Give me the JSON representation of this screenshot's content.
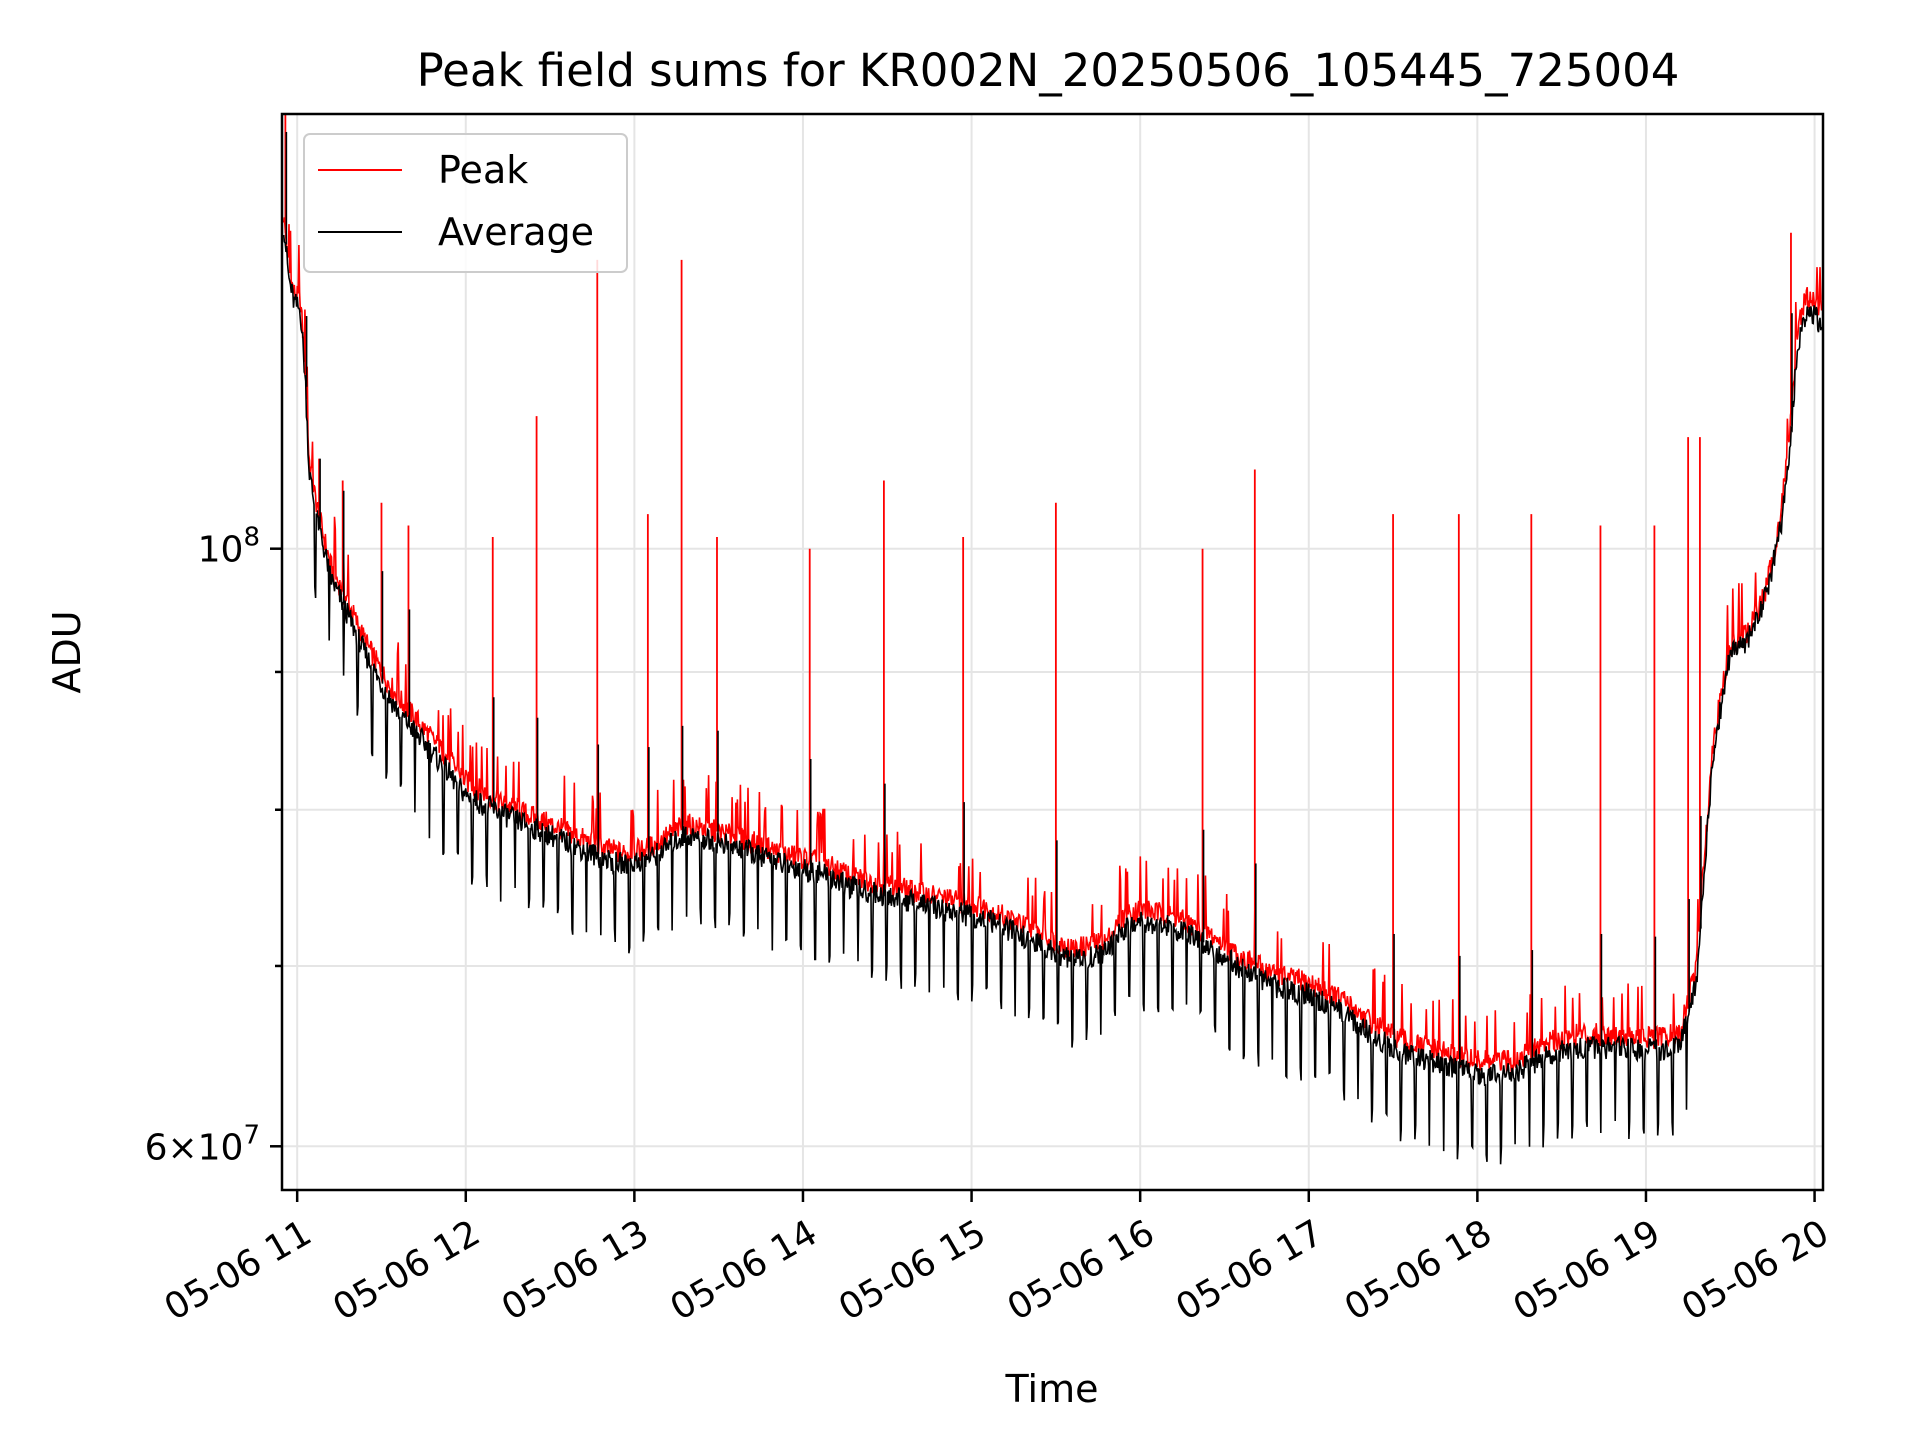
{
  "chart_data": {
    "type": "line",
    "title": "Peak field sums for KR002N_20250506_105445_725004",
    "xlabel": "Time",
    "ylabel": "ADU",
    "yscale": "log",
    "grid": true,
    "legend_position": "top-left",
    "x_tick_labels": [
      "05-06 11",
      "05-06 12",
      "05-06 13",
      "05-06 14",
      "05-06 15",
      "05-06 16",
      "05-06 17",
      "05-06 18",
      "05-06 19",
      "05-06 20"
    ],
    "x_tick_hours": [
      11,
      12,
      13,
      14,
      15,
      16,
      17,
      18,
      19,
      20
    ],
    "xlim": [
      10.91,
      20.05
    ],
    "ylim": [
      57800000,
      145000000
    ],
    "y_major_ticks": [
      {
        "value": 100000000,
        "base": "10",
        "exp": "8"
      },
      {
        "value": 60000000,
        "mant": "6",
        "base": "10",
        "exp": "7"
      }
    ],
    "y_minor_ticks": [
      70000000,
      80000000,
      90000000
    ],
    "series": [
      {
        "name": "Peak",
        "color": "#ff0000",
        "x": [
          10.92,
          10.95,
          10.98,
          11.02,
          11.05,
          11.07,
          11.1,
          11.15,
          11.2,
          11.3,
          11.4,
          11.5,
          11.6,
          11.7,
          11.8,
          11.9,
          12.0,
          12.2,
          12.4,
          12.6,
          12.8,
          12.95,
          13.1,
          13.3,
          13.5,
          13.7,
          13.9,
          14.1,
          14.3,
          14.5,
          14.7,
          14.9,
          15.1,
          15.3,
          15.5,
          15.6,
          15.8,
          15.9,
          16.0,
          16.2,
          16.4,
          16.6,
          16.8,
          17.0,
          17.2,
          17.4,
          17.6,
          17.8,
          18.0,
          18.2,
          18.4,
          18.6,
          18.8,
          19.0,
          19.2,
          19.3,
          19.4,
          19.5,
          19.6,
          19.7,
          19.75,
          19.8,
          19.85,
          19.9,
          19.95,
          20.0,
          20.05
        ],
        "y": [
          133000000,
          127000000,
          124500000,
          123500000,
          116000000,
          108000000,
          105000000,
          101500000,
          98500000,
          95500000,
          92500000,
          90000000,
          88000000,
          86500000,
          85000000,
          83500000,
          82000000,
          80500000,
          79500000,
          78500000,
          77500000,
          77000000,
          77500000,
          79000000,
          78500000,
          77800000,
          77000000,
          76500000,
          75500000,
          75000000,
          74500000,
          74000000,
          73500000,
          72500000,
          71500000,
          71000000,
          71500000,
          73000000,
          73500000,
          73000000,
          72000000,
          70500000,
          69500000,
          69000000,
          68000000,
          66500000,
          65500000,
          65000000,
          64500000,
          64500000,
          65500000,
          66000000,
          66000000,
          65800000,
          66000000,
          70000000,
          85000000,
          92000000,
          93000000,
          96000000,
          99000000,
          103000000,
          110000000,
          121000000,
          124000000,
          123500000,
          122500000
        ]
      },
      {
        "name": "Average",
        "color": "#000000",
        "x": [
          10.92,
          10.95,
          10.98,
          11.02,
          11.05,
          11.07,
          11.1,
          11.15,
          11.2,
          11.3,
          11.4,
          11.5,
          11.6,
          11.7,
          11.8,
          11.9,
          12.0,
          12.2,
          12.4,
          12.6,
          12.8,
          12.95,
          13.1,
          13.3,
          13.5,
          13.7,
          13.9,
          14.1,
          14.3,
          14.5,
          14.7,
          14.9,
          15.1,
          15.3,
          15.5,
          15.6,
          15.8,
          15.9,
          16.0,
          16.2,
          16.4,
          16.6,
          16.8,
          17.0,
          17.2,
          17.4,
          17.6,
          17.8,
          18.0,
          18.2,
          18.4,
          18.6,
          18.8,
          19.0,
          19.2,
          19.3,
          19.4,
          19.5,
          19.6,
          19.7,
          19.75,
          19.8,
          19.85,
          19.9,
          19.95,
          20.0,
          20.05
        ],
        "y": [
          132000000,
          126000000,
          123500000,
          122500000,
          115000000,
          107000000,
          104000000,
          100500000,
          97500000,
          94500000,
          91500000,
          89000000,
          87000000,
          85500000,
          84000000,
          82500000,
          81000000,
          79800000,
          78800000,
          77800000,
          76800000,
          76300000,
          76800000,
          78300000,
          77800000,
          77100000,
          76300000,
          75800000,
          74800000,
          74300000,
          73800000,
          73300000,
          72800000,
          71800000,
          70800000,
          70300000,
          70800000,
          72300000,
          72800000,
          72300000,
          71300000,
          69800000,
          68800000,
          68300000,
          67300000,
          65800000,
          64800000,
          64300000,
          63800000,
          63800000,
          64800000,
          65300000,
          65300000,
          65100000,
          65300000,
          69000000,
          84000000,
          91500000,
          92500000,
          95500000,
          98500000,
          102000000,
          108000000,
          119000000,
          122500000,
          122000000,
          121000000
        ]
      }
    ],
    "peak_spikes": [
      {
        "x": 10.93,
        "y": 145000000
      },
      {
        "x": 11.05,
        "y": 122000000
      },
      {
        "x": 11.13,
        "y": 108000000
      },
      {
        "x": 11.27,
        "y": 106000000
      },
      {
        "x": 11.5,
        "y": 104000000
      },
      {
        "x": 11.66,
        "y": 102000000
      },
      {
        "x": 12.16,
        "y": 101000000
      },
      {
        "x": 12.42,
        "y": 112000000
      },
      {
        "x": 12.78,
        "y": 128000000
      },
      {
        "x": 13.08,
        "y": 103000000
      },
      {
        "x": 13.28,
        "y": 128000000
      },
      {
        "x": 13.49,
        "y": 101000000
      },
      {
        "x": 14.04,
        "y": 100000000
      },
      {
        "x": 14.48,
        "y": 106000000
      },
      {
        "x": 14.95,
        "y": 101000000
      },
      {
        "x": 15.5,
        "y": 104000000
      },
      {
        "x": 16.37,
        "y": 100000000
      },
      {
        "x": 16.68,
        "y": 107000000
      },
      {
        "x": 17.5,
        "y": 103000000
      },
      {
        "x": 17.89,
        "y": 103000000
      },
      {
        "x": 18.32,
        "y": 103000000
      },
      {
        "x": 18.73,
        "y": 102000000
      },
      {
        "x": 19.05,
        "y": 102000000
      },
      {
        "x": 19.25,
        "y": 110000000
      },
      {
        "x": 19.32,
        "y": 110000000
      },
      {
        "x": 19.86,
        "y": 131000000
      }
    ]
  },
  "legend": {
    "items": [
      {
        "label": "Peak",
        "color": "#ff0000"
      },
      {
        "label": "Average",
        "color": "#000000"
      }
    ]
  }
}
